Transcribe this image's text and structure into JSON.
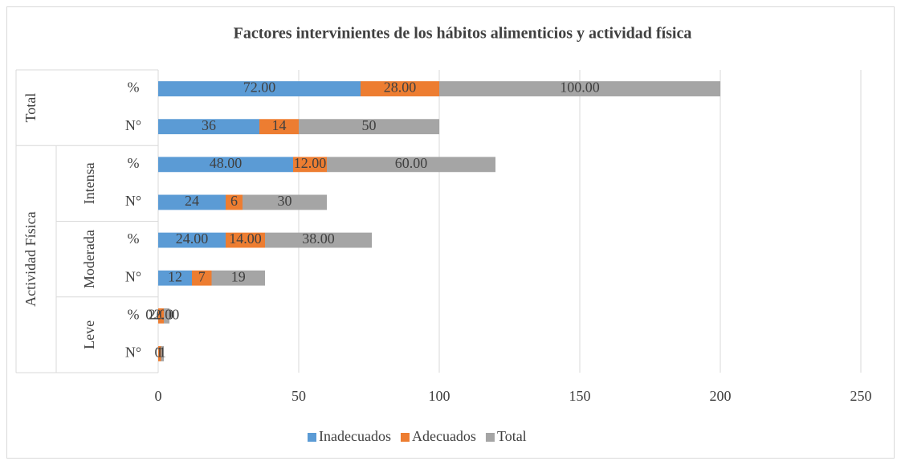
{
  "chart_data": {
    "type": "stacked_barh",
    "title": "Factores intervinientes de los hábitos alimenticios y actividad física",
    "category_groups": [
      {
        "name": "Total",
        "categories": [
          "%",
          "N°"
        ]
      },
      {
        "name": "Actividad Física",
        "subgroups": [
          {
            "name": "Intensa",
            "categories": [
              "%",
              "N°"
            ]
          },
          {
            "name": "Moderada",
            "categories": [
              "%",
              "N°"
            ]
          },
          {
            "name": "Leve",
            "categories": [
              "%",
              "N°"
            ]
          }
        ]
      }
    ],
    "series": [
      {
        "name": "Inadecuados",
        "color": "#5b9bd5",
        "values": [
          72,
          36,
          48,
          24,
          24,
          12,
          0,
          0
        ],
        "value_labels": [
          "72.00",
          "36",
          "48.00",
          "24",
          "24.00",
          "12",
          "0.00",
          "0"
        ]
      },
      {
        "name": "Adecuados",
        "color": "#ed7d31",
        "values": [
          28,
          14,
          12,
          6,
          14,
          7,
          2,
          1
        ],
        "value_labels": [
          "28.00",
          "14",
          "12.00",
          "6",
          "14.00",
          "7",
          "2.00",
          "1"
        ]
      },
      {
        "name": "Total",
        "color": "#a5a5a5",
        "values": [
          100,
          50,
          60,
          30,
          38,
          19,
          2,
          1
        ],
        "value_labels": [
          "100.00",
          "50",
          "60.00",
          "30",
          "38.00",
          "19",
          "2.00",
          "1"
        ]
      }
    ],
    "xlim": [
      0,
      250
    ],
    "xticks": [
      0,
      50,
      100,
      150,
      200,
      250
    ],
    "grid": true,
    "legend": "bottom"
  }
}
